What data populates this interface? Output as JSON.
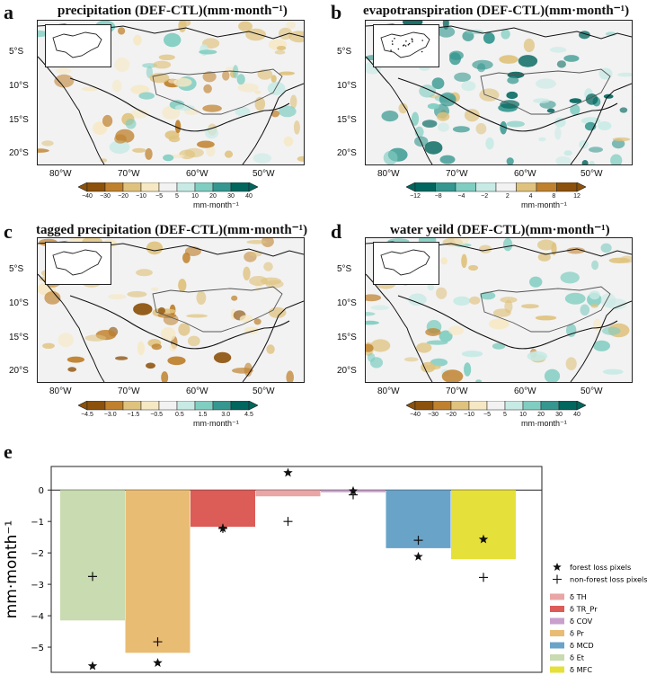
{
  "panels": {
    "a": {
      "letter": "a",
      "title": "precipitation (DEF-CTL)(mm·month⁻¹)",
      "cbar_ticks": [
        "−40",
        "−30",
        "−20",
        "−10",
        "−5",
        "5",
        "10",
        "20",
        "30",
        "40"
      ],
      "unit": "mm·month⁻¹",
      "colors": [
        "#8c510a",
        "#bf812d",
        "#dfc27d",
        "#f6e8c3",
        "#f2f2f2",
        "#c7eae5",
        "#80cdc1",
        "#35978f",
        "#01665e"
      ]
    },
    "b": {
      "letter": "b",
      "title": "evapotranspiration (DEF-CTL)(mm·month⁻¹)",
      "cbar_ticks": [
        "−12",
        "−8",
        "−4",
        "−2",
        "2",
        "4",
        "8",
        "12"
      ],
      "unit": "mm·month⁻¹",
      "colors": [
        "#01665e",
        "#35978f",
        "#80cdc1",
        "#c7eae5",
        "#f2f2f2",
        "#dfc27d",
        "#bf812d",
        "#8c510a"
      ]
    },
    "c": {
      "letter": "c",
      "title": "tagged precipitation (DEF-CTL)(mm·month⁻¹)",
      "cbar_ticks": [
        "−4.5",
        "−3.0",
        "−1.5",
        "−0.5",
        "0.5",
        "1.5",
        "3.0",
        "4.5"
      ],
      "unit": "mm·month⁻¹",
      "colors": [
        "#8c510a",
        "#bf812d",
        "#dfc27d",
        "#f6e8c3",
        "#f2f2f2",
        "#c7eae5",
        "#80cdc1",
        "#35978f",
        "#01665e"
      ]
    },
    "d": {
      "letter": "d",
      "title": "water yeild (DEF-CTL)(mm·month⁻¹)",
      "cbar_ticks": [
        "−40",
        "−30",
        "−20",
        "−10",
        "−5",
        "5",
        "10",
        "20",
        "30",
        "40"
      ],
      "unit": "mm·month⁻¹",
      "colors": [
        "#8c510a",
        "#bf812d",
        "#dfc27d",
        "#f6e8c3",
        "#f2f2f2",
        "#c7eae5",
        "#80cdc1",
        "#35978f",
        "#01665e"
      ]
    }
  },
  "map_axes": {
    "lat_labels": [
      "5°S",
      "10°S",
      "15°S",
      "20°S"
    ],
    "lon_labels": [
      "80°W",
      "70°W",
      "60°W",
      "50°W"
    ]
  },
  "panel_e": {
    "letter": "e"
  },
  "chart_data": {
    "type": "bar",
    "ylabel": "mm·month⁻¹",
    "ylim": [
      -5.8,
      0.75
    ],
    "yticks": [
      0,
      -1,
      -2,
      -3,
      -4,
      -5
    ],
    "ytick_labels": [
      "0",
      "−1",
      "−2",
      "−3",
      "−4",
      "−5"
    ],
    "bars": [
      {
        "name": "δ Et",
        "value": -4.15,
        "color": "#c8dbb1",
        "forest": -5.6,
        "nonforest": -2.75
      },
      {
        "name": "δ Pr",
        "value": -5.18,
        "color": "#e9bc74",
        "forest": -5.5,
        "nonforest": -4.83
      },
      {
        "name": "δ TR_Pr",
        "value": -1.17,
        "color": "#dc5c58",
        "forest": -1.22,
        "nonforest": -1.22
      },
      {
        "name": "δ TH",
        "value": -0.2,
        "color": "#e9a6a4",
        "forest": 0.55,
        "nonforest": -1.0
      },
      {
        "name": "δ COV",
        "value": -0.07,
        "color": "#c9a0cc",
        "forest": -0.03,
        "nonforest": -0.15
      },
      {
        "name": "δ MCD",
        "value": -1.85,
        "color": "#6aa3c8",
        "forest": -2.12,
        "nonforest": -1.6
      },
      {
        "name": "δ MFC",
        "value": -2.2,
        "color": "#e6e03a",
        "forest": -1.57,
        "nonforest": -2.78
      }
    ],
    "legend": [
      {
        "label": "forest loss pixels",
        "marker": "star"
      },
      {
        "label": "non-forest loss pixels",
        "marker": "plus"
      },
      {
        "label": "δ TH",
        "color": "#e9a6a4"
      },
      {
        "label": "δ TR_Pr",
        "color": "#dc5c58"
      },
      {
        "label": "δ COV",
        "color": "#c9a0cc"
      },
      {
        "label": "δ Pr",
        "color": "#e9bc74"
      },
      {
        "label": "δ MCD",
        "color": "#6aa3c8"
      },
      {
        "label": "δ Et",
        "color": "#c8dbb1"
      },
      {
        "label": "δ MFC",
        "color": "#e6e03a"
      }
    ],
    "legend_position": "right"
  }
}
